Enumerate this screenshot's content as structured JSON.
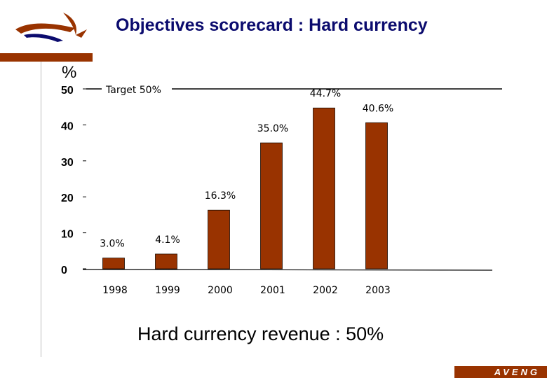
{
  "header": {
    "title": "Objectives scorecard : Hard currency"
  },
  "footer": {
    "caption": "Hard currency revenue : 50%",
    "brand": "AVENG"
  },
  "colors": {
    "accent": "#993300",
    "title": "#0b0b6e",
    "bar": "#993300"
  },
  "chart_data": {
    "type": "bar",
    "categories": [
      "1998",
      "1999",
      "2000",
      "2001",
      "2002",
      "2003"
    ],
    "values": [
      3.0,
      4.1,
      16.3,
      35.0,
      44.7,
      40.6
    ],
    "data_labels": [
      "3.0%",
      "4.1%",
      "16.3%",
      "35.0%",
      "44.7%",
      "40.6%"
    ],
    "ylabel": "%",
    "ylim": [
      0,
      50
    ],
    "yticks": [
      "0",
      "10",
      "20",
      "30",
      "40",
      "50"
    ],
    "target": {
      "label": "Target 50%",
      "value": 50
    },
    "grid": false
  }
}
